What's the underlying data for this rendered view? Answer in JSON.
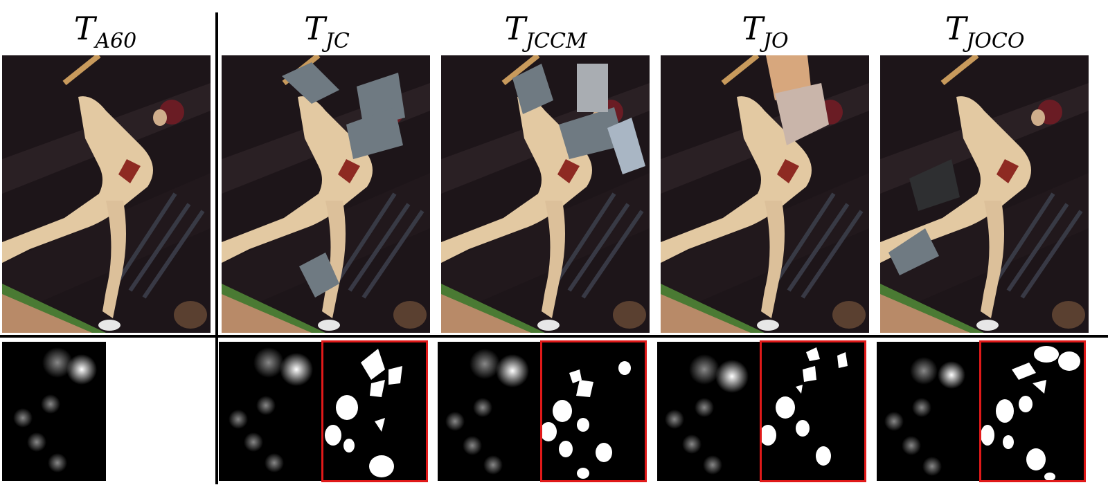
{
  "columns": [
    {
      "id": "a60",
      "title_main": "T",
      "title_sub": "A60"
    },
    {
      "id": "jc",
      "title_main": "T",
      "title_sub": "JC"
    },
    {
      "id": "jccm",
      "title_main": "T",
      "title_sub": "JCCM"
    },
    {
      "id": "jo",
      "title_main": "T",
      "title_sub": "JO"
    },
    {
      "id": "joco",
      "title_main": "T",
      "title_sub": "JOCO"
    }
  ],
  "colors": {
    "mask_border": "#e01919",
    "occluder_gray": "#6f7a82",
    "divider": "#000000"
  }
}
